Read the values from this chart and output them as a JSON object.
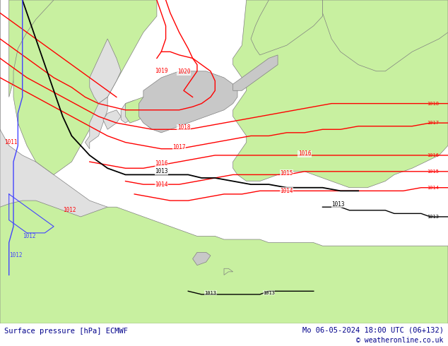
{
  "title_left": "Surface pressure [hPa] ECMWF",
  "title_right": "Mo 06-05-2024 18:00 UTC (06+132)",
  "copyright": "© weatheronline.co.uk",
  "figsize": [
    6.34,
    4.9
  ],
  "dpi": 100,
  "bg_color": "#c8c8c8",
  "land_green": "#c8f0a0",
  "land_gray": "#e0e0e0",
  "ocean_color": "#b0c8e0",
  "bottom_bar_color": "#ffffff",
  "bottom_bar_height": 0.065,
  "red": "#ff0000",
  "black": "#000000",
  "blue": "#4444ff",
  "text_color": "#00008b",
  "font_size_bottom": 7.5,
  "coast_color": "#808080",
  "coast_lw": 0.5
}
